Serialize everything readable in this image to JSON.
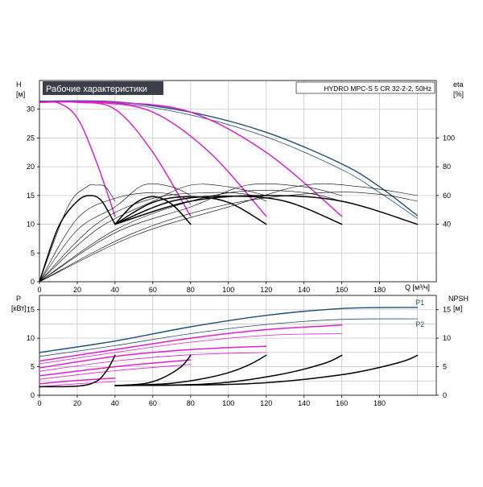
{
  "colors": {
    "background": "#ffffff",
    "grid": "#c8c8c8",
    "axis": "#000000",
    "blue": "#1f4e79",
    "magenta": "#e020d0",
    "black": "#000000",
    "title_bg": "#3a3f4a",
    "title_fg": "#ffffff"
  },
  "chart_data": [
    {
      "type": "line",
      "title": "Рабочие характеристики",
      "subtitle": "HYDRO MPC-S 5 CR 32-2-2, 50Hz",
      "ylabel": "H",
      "yunit": "[м]",
      "ylabel_right": "eta",
      "yunit_right": "[%]",
      "xlabel": "Q [м³/ч]",
      "xlim": [
        0,
        210
      ],
      "ylim": [
        0,
        35
      ],
      "y2lim": [
        0,
        140
      ],
      "x_ticks": [
        0,
        20,
        40,
        60,
        80,
        100,
        120,
        140,
        160,
        180
      ],
      "y_ticks": [
        0,
        5,
        10,
        15,
        20,
        25,
        30
      ],
      "y2_ticks": [
        40,
        60,
        80,
        100
      ],
      "grid": true,
      "series": [
        {
          "color": "blue",
          "width": 1.4,
          "points": [
            [
              0,
              31.4
            ],
            [
              40,
              31.3
            ],
            [
              80,
              29.5
            ],
            [
              120,
              26
            ],
            [
              160,
              20.5
            ],
            [
              180,
              16.5
            ],
            [
              200,
              11.5
            ]
          ]
        },
        {
          "color": "blue",
          "width": 0.8,
          "points": [
            [
              0,
              31.4
            ],
            [
              40,
              31.1
            ],
            [
              80,
              29
            ],
            [
              120,
              25.2
            ],
            [
              160,
              19.5
            ],
            [
              180,
              15.5
            ],
            [
              200,
              11
            ]
          ]
        },
        {
          "color": "magenta",
          "width": 1.5,
          "points": [
            [
              0,
              31.2
            ],
            [
              10,
              31.1
            ],
            [
              20,
              28.5
            ],
            [
              30,
              21
            ],
            [
              40,
              11.4
            ]
          ]
        },
        {
          "color": "magenta",
          "width": 1.5,
          "points": [
            [
              0,
              31.2
            ],
            [
              20,
              31.2
            ],
            [
              40,
              30
            ],
            [
              60,
              22.5
            ],
            [
              80,
              11.4
            ]
          ]
        },
        {
          "color": "magenta",
          "width": 1.5,
          "points": [
            [
              0,
              31.2
            ],
            [
              30,
              31.2
            ],
            [
              60,
              29.5
            ],
            [
              90,
              22.5
            ],
            [
              120,
              11.4
            ]
          ]
        },
        {
          "color": "magenta",
          "width": 1.5,
          "points": [
            [
              0,
              31.2
            ],
            [
              40,
              31.2
            ],
            [
              80,
              29.5
            ],
            [
              120,
              22.5
            ],
            [
              160,
              11.4
            ]
          ]
        },
        {
          "color": "black",
          "width": 1.5,
          "points": [
            [
              0,
              0
            ],
            [
              10,
              9.5
            ],
            [
              20,
              14
            ],
            [
              27,
              15
            ],
            [
              33,
              14
            ],
            [
              40,
              10
            ]
          ]
        },
        {
          "color": "black",
          "width": 1.5,
          "points": [
            [
              40,
              10
            ],
            [
              50,
              13.5
            ],
            [
              60,
              14.8
            ],
            [
              70,
              13.5
            ],
            [
              80,
              10
            ]
          ]
        },
        {
          "color": "black",
          "width": 1.5,
          "points": [
            [
              40,
              10
            ],
            [
              60,
              13.8
            ],
            [
              80,
              14.8
            ],
            [
              100,
              13.8
            ],
            [
              120,
              10
            ]
          ]
        },
        {
          "color": "black",
          "width": 1.5,
          "points": [
            [
              40,
              10
            ],
            [
              70,
              14
            ],
            [
              100,
              14.9
            ],
            [
              130,
              14
            ],
            [
              160,
              10
            ]
          ]
        },
        {
          "color": "black",
          "width": 1.5,
          "points": [
            [
              40,
              10
            ],
            [
              80,
              14
            ],
            [
              120,
              15
            ],
            [
              160,
              14
            ],
            [
              200,
              10
            ]
          ]
        },
        {
          "color": "black",
          "width": 0.6,
          "points": [
            [
              0,
              0
            ],
            [
              15,
              13
            ],
            [
              25,
              16.5
            ],
            [
              30,
              16.8
            ],
            [
              35,
              16.5
            ],
            [
              40,
              14
            ]
          ]
        },
        {
          "color": "black",
          "width": 0.6,
          "points": [
            [
              0,
              0
            ],
            [
              20,
              11
            ],
            [
              40,
              14.5
            ],
            [
              60,
              15.5
            ],
            [
              75,
              14.8
            ],
            [
              80,
              13.5
            ]
          ]
        },
        {
          "color": "black",
          "width": 0.6,
          "points": [
            [
              0,
              0
            ],
            [
              20,
              9
            ],
            [
              40,
              13
            ],
            [
              55,
              16.8
            ],
            [
              70,
              16.5
            ],
            [
              80,
              15
            ]
          ]
        },
        {
          "color": "black",
          "width": 0.6,
          "points": [
            [
              0,
              0
            ],
            [
              30,
              10
            ],
            [
              60,
              14.5
            ],
            [
              90,
              15.5
            ],
            [
              110,
              15.2
            ],
            [
              120,
              14
            ]
          ]
        },
        {
          "color": "black",
          "width": 0.6,
          "points": [
            [
              0,
              0
            ],
            [
              30,
              9
            ],
            [
              60,
              14
            ],
            [
              80,
              16.8
            ],
            [
              100,
              16.5
            ],
            [
              120,
              15
            ]
          ]
        },
        {
          "color": "black",
          "width": 0.6,
          "points": [
            [
              0,
              0
            ],
            [
              40,
              9
            ],
            [
              80,
              14
            ],
            [
              110,
              15.8
            ],
            [
              140,
              15.5
            ],
            [
              160,
              14
            ]
          ]
        },
        {
          "color": "black",
          "width": 0.6,
          "points": [
            [
              0,
              0
            ],
            [
              40,
              8.5
            ],
            [
              80,
              13
            ],
            [
              110,
              16.8
            ],
            [
              140,
              16.5
            ],
            [
              160,
              15
            ]
          ]
        },
        {
          "color": "black",
          "width": 0.6,
          "points": [
            [
              0,
              0
            ],
            [
              50,
              8.5
            ],
            [
              100,
              13.5
            ],
            [
              150,
              15.5
            ],
            [
              180,
              15.2
            ],
            [
              200,
              14
            ]
          ]
        },
        {
          "color": "black",
          "width": 0.6,
          "points": [
            [
              0,
              0
            ],
            [
              50,
              8
            ],
            [
              100,
              13
            ],
            [
              140,
              16.8
            ],
            [
              170,
              16.5
            ],
            [
              200,
              15
            ]
          ]
        }
      ]
    },
    {
      "type": "line",
      "ylabel": "P",
      "yunit": "[кВт]",
      "ylabel_right": "NPSH",
      "yunit_right": "[м]",
      "xlim": [
        0,
        210
      ],
      "ylim": [
        0,
        17.5
      ],
      "x_ticks": [
        0,
        20,
        40,
        60,
        80,
        100,
        120,
        140,
        160,
        180
      ],
      "y_ticks": [
        0,
        5,
        10,
        15
      ],
      "y2_ticks": [
        0,
        5,
        10,
        15
      ],
      "grid": true,
      "labels": [
        {
          "text": "P1",
          "x": 199,
          "y": 16.2,
          "color": "blue"
        },
        {
          "text": "P2",
          "x": 199,
          "y": 12.4,
          "color": "blue"
        }
      ],
      "series": [
        {
          "color": "blue",
          "width": 1.4,
          "points": [
            [
              0,
              7.5
            ],
            [
              40,
              9.5
            ],
            [
              80,
              12
            ],
            [
              120,
              14
            ],
            [
              160,
              15.2
            ],
            [
              200,
              15.4
            ]
          ]
        },
        {
          "color": "blue",
          "width": 0.8,
          "points": [
            [
              0,
              6.8
            ],
            [
              40,
              8.7
            ],
            [
              80,
              10.8
            ],
            [
              120,
              12.4
            ],
            [
              160,
              13.3
            ],
            [
              200,
              13.4
            ]
          ]
        },
        {
          "color": "magenta",
          "width": 1.5,
          "points": [
            [
              0,
              6
            ],
            [
              40,
              8
            ],
            [
              80,
              10
            ],
            [
              120,
              11.5
            ],
            [
              160,
              12.3
            ]
          ]
        },
        {
          "color": "magenta",
          "width": 0.8,
          "points": [
            [
              0,
              5.5
            ],
            [
              40,
              7.5
            ],
            [
              80,
              9.3
            ],
            [
              120,
              10.5
            ],
            [
              160,
              10.8
            ]
          ]
        },
        {
          "color": "magenta",
          "width": 1.5,
          "points": [
            [
              0,
              4.8
            ],
            [
              40,
              6.8
            ],
            [
              80,
              8
            ],
            [
              120,
              8.6
            ]
          ]
        },
        {
          "color": "magenta",
          "width": 0.8,
          "points": [
            [
              0,
              4.2
            ],
            [
              40,
              6
            ],
            [
              80,
              7.1
            ],
            [
              120,
              7.5
            ]
          ]
        },
        {
          "color": "magenta",
          "width": 1.5,
          "points": [
            [
              0,
              3.4
            ],
            [
              40,
              5
            ],
            [
              80,
              6.2
            ]
          ]
        },
        {
          "color": "magenta",
          "width": 0.8,
          "points": [
            [
              0,
              2.8
            ],
            [
              40,
              4.3
            ],
            [
              80,
              5.4
            ]
          ]
        },
        {
          "color": "magenta",
          "width": 1.5,
          "points": [
            [
              0,
              2
            ],
            [
              20,
              2.6
            ],
            [
              40,
              3
            ]
          ]
        },
        {
          "color": "magenta",
          "width": 0.8,
          "points": [
            [
              0,
              1.5
            ],
            [
              20,
              2
            ],
            [
              40,
              2.4
            ]
          ]
        },
        {
          "color": "black",
          "width": 1.5,
          "points": [
            [
              0,
              1.5
            ],
            [
              20,
              1.6
            ],
            [
              30,
              2.4
            ],
            [
              36,
              4.5
            ],
            [
              40,
              7
            ]
          ]
        },
        {
          "color": "black",
          "width": 1.5,
          "points": [
            [
              40,
              1.7
            ],
            [
              55,
              2
            ],
            [
              65,
              3
            ],
            [
              75,
              5
            ],
            [
              80,
              7
            ]
          ]
        },
        {
          "color": "black",
          "width": 1.5,
          "points": [
            [
              40,
              1.7
            ],
            [
              70,
              2.1
            ],
            [
              95,
              3.5
            ],
            [
              110,
              5.2
            ],
            [
              120,
              7
            ]
          ]
        },
        {
          "color": "black",
          "width": 1.5,
          "points": [
            [
              40,
              1.7
            ],
            [
              90,
              2
            ],
            [
              125,
              3.5
            ],
            [
              150,
              5.5
            ],
            [
              160,
              7
            ]
          ]
        },
        {
          "color": "black",
          "width": 1.5,
          "points": [
            [
              40,
              1.7
            ],
            [
              110,
              2
            ],
            [
              160,
              3.6
            ],
            [
              190,
              5.7
            ],
            [
              200,
              7
            ]
          ]
        }
      ]
    }
  ]
}
